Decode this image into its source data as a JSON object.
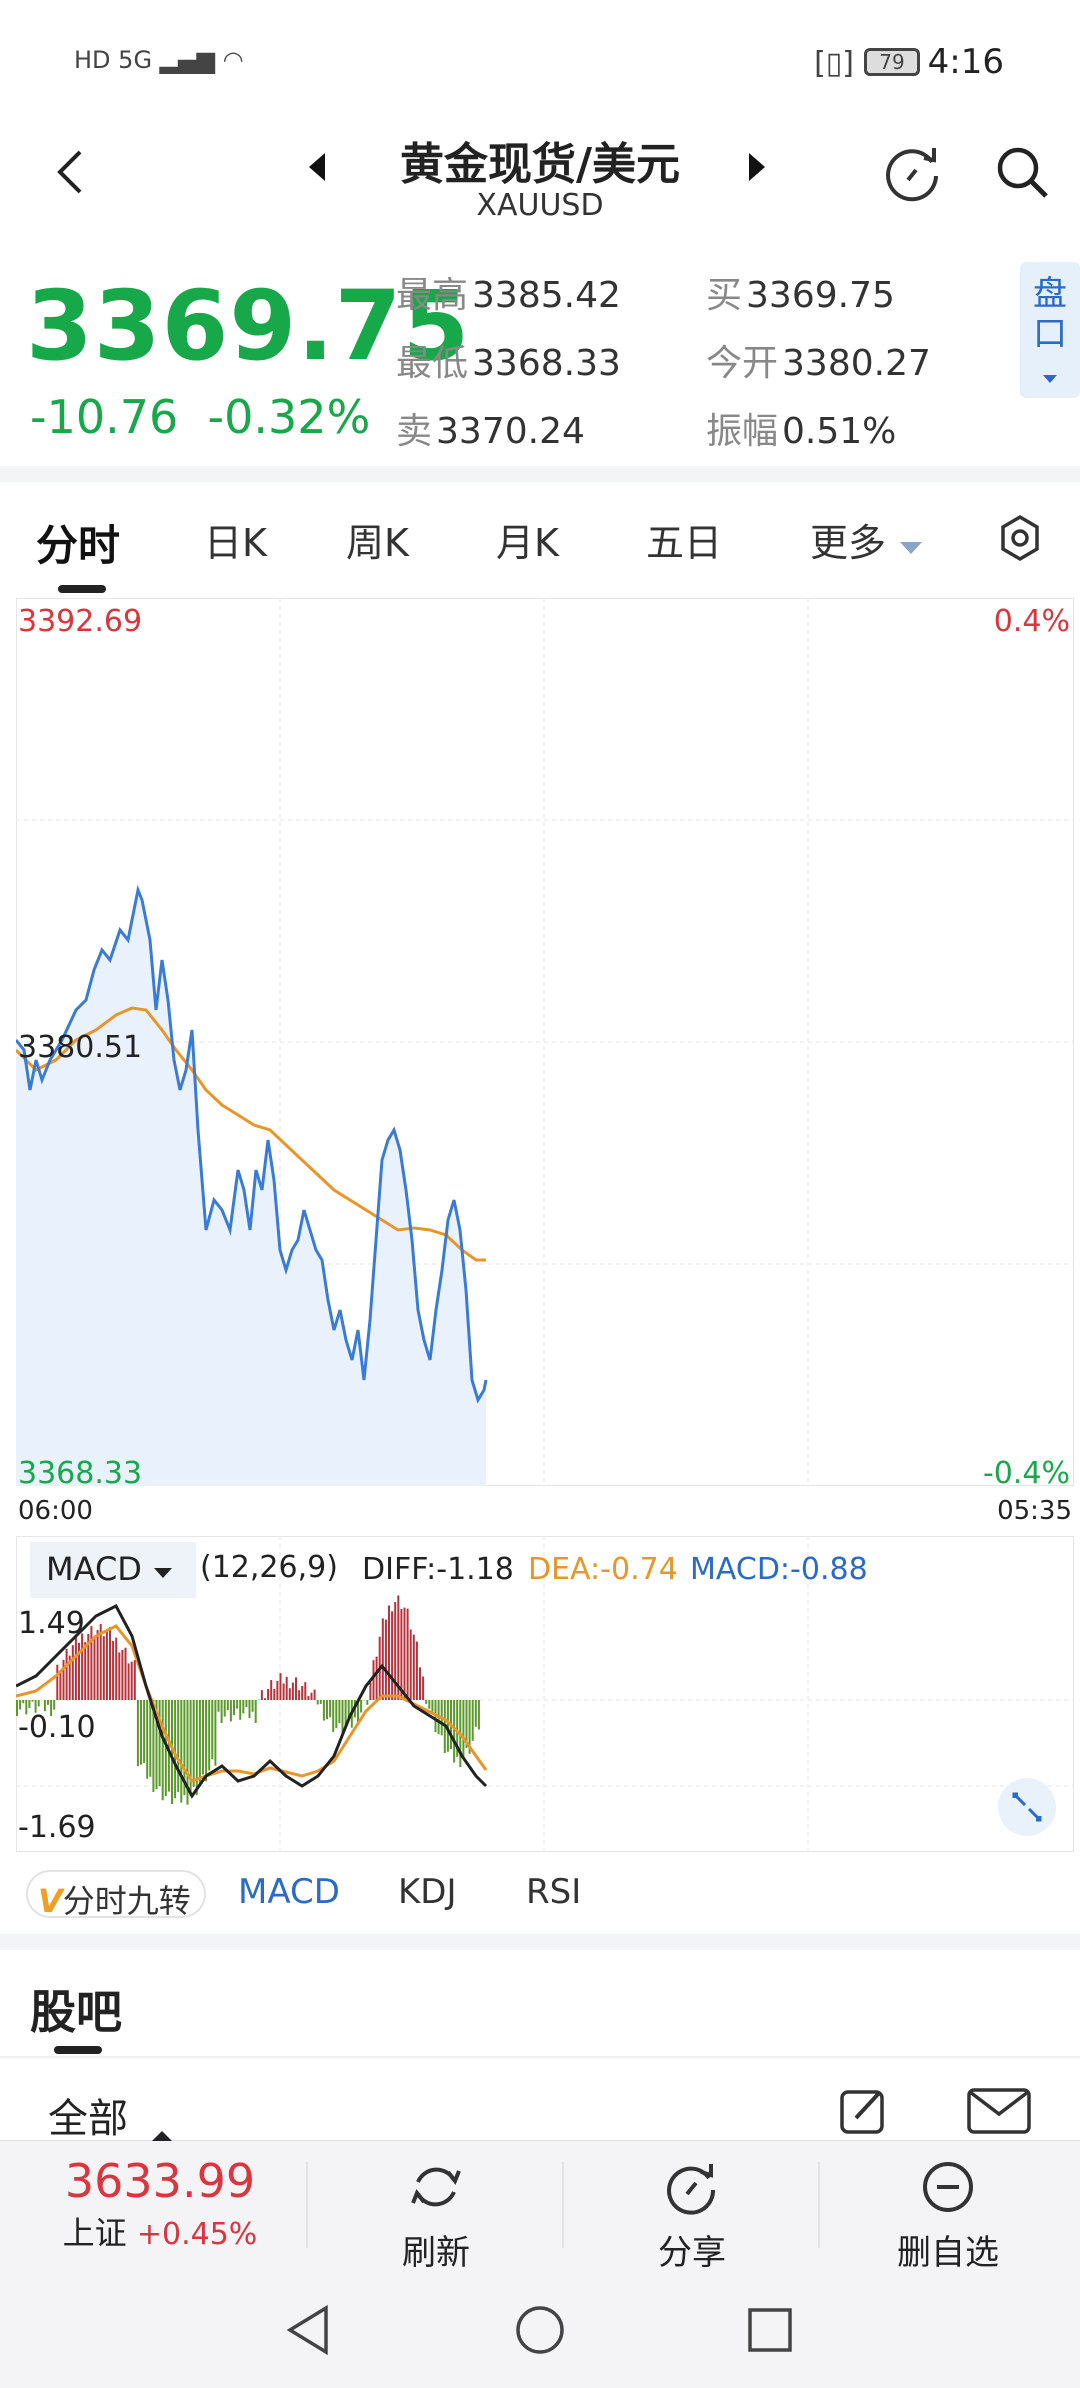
{
  "status_bar": {
    "time": "4:16",
    "battery": "79",
    "network_hd": "HD",
    "network_gen": "5G"
  },
  "header": {
    "title": "黄金现货/美元",
    "subtitle": "XAUUSD"
  },
  "quote": {
    "price": "3369.75",
    "change": "-10.76",
    "change_pct": "-0.32%",
    "high_label": "最高",
    "high": "3385.42",
    "low_label": "最低",
    "low": "3368.33",
    "sell_label": "卖",
    "sell": "3370.24",
    "buy_label": "买",
    "buy": "3369.75",
    "open_label": "今开",
    "open": "3380.27",
    "amp_label": "振幅",
    "amp": "0.51%",
    "pankou": "盘口"
  },
  "tabs": [
    "分时",
    "日K",
    "周K",
    "月K",
    "五日",
    "更多"
  ],
  "chart": {
    "y_max": "3392.69",
    "y_mid": "3380.51",
    "y_min": "3368.33",
    "pct_max": "0.4%",
    "pct_min": "-0.4%",
    "x_start": "06:00",
    "x_end": "05:35",
    "colors": {
      "price": "#3a7bd5",
      "avg": "#e8962a",
      "fill": "#e8f1fc"
    }
  },
  "macd": {
    "selector": "MACD",
    "params": "(12,26,9)",
    "diff": "DIFF:-1.18",
    "dea": "DEA:-0.74",
    "macd": "MACD:-0.88",
    "y_top": "1.49",
    "y_mid": "-0.10",
    "y_bot": "-1.69"
  },
  "subtabs": {
    "jiuzhuan_icon": "V",
    "jiuzhuan": "分时九转",
    "macd": "MACD",
    "kdj": "KDJ",
    "rsi": "RSI"
  },
  "guba": {
    "title": "股吧",
    "filter": "全部"
  },
  "bottom": {
    "index_value": "3633.99",
    "index_name": "上证",
    "index_change": "+0.45%",
    "refresh": "刷新",
    "share": "分享",
    "remove": "删自选"
  }
}
